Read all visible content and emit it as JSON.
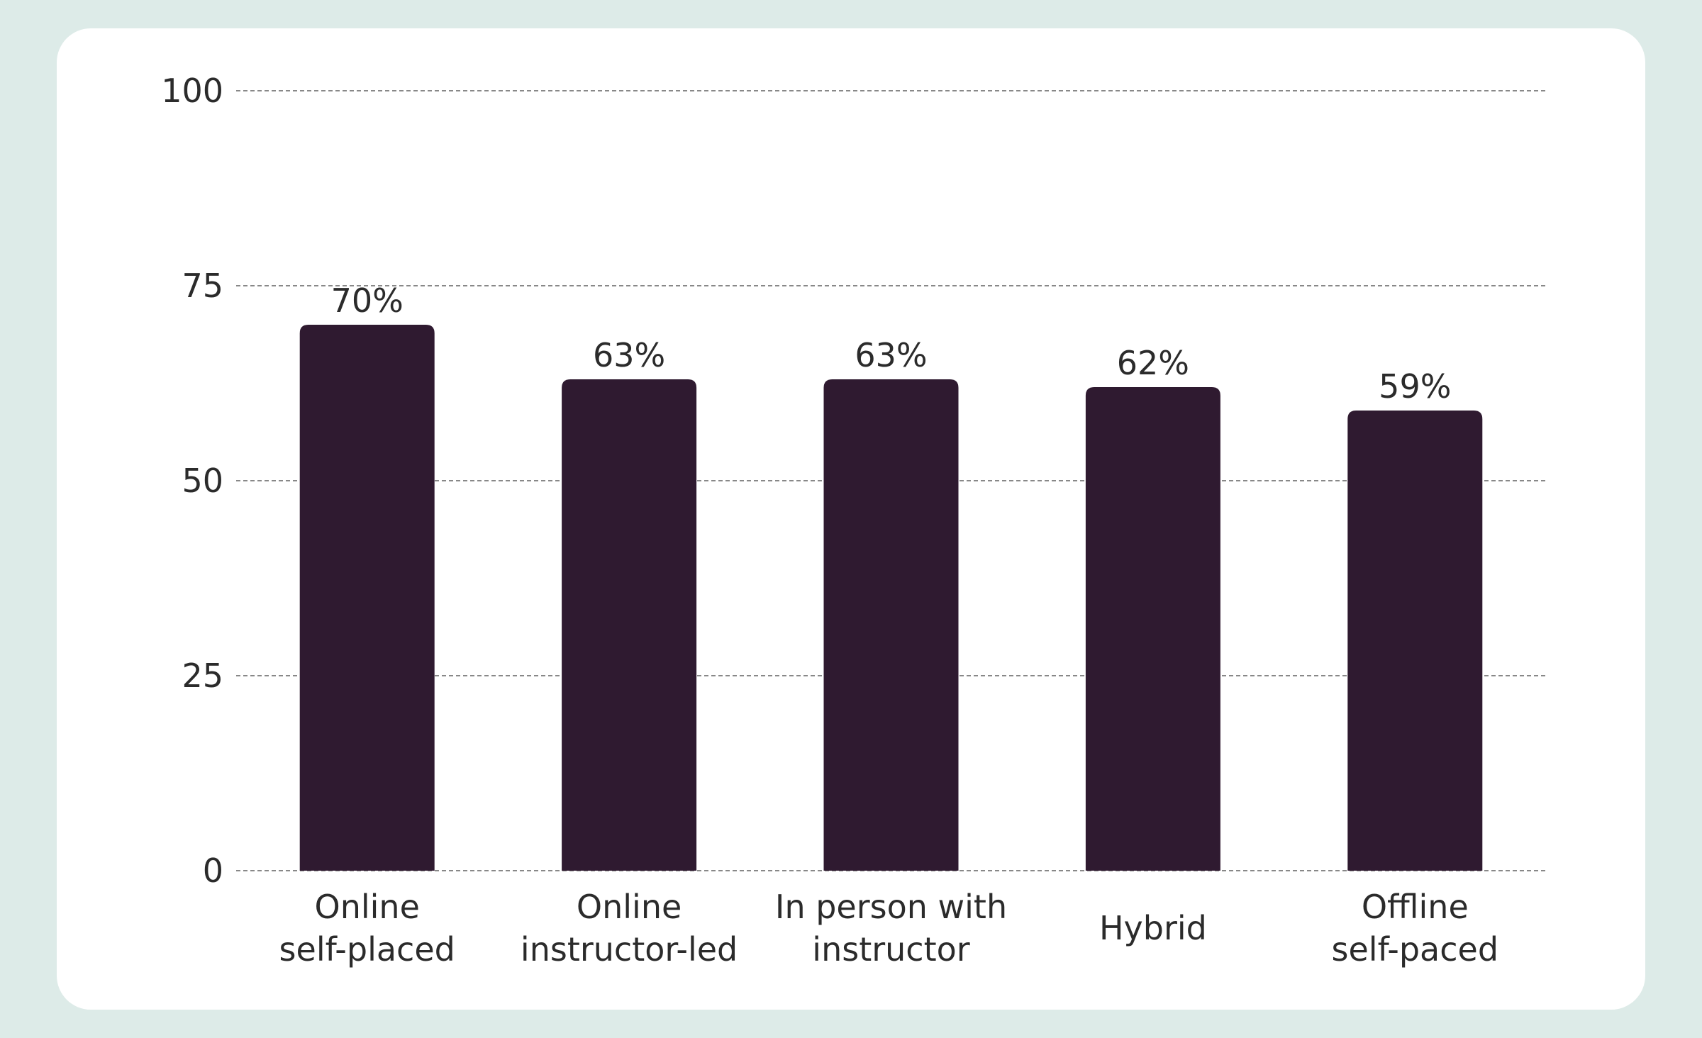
{
  "colors": {
    "background": "#ddebe8",
    "card": "#ffffff",
    "bar": "#2f1a30",
    "text": "#2b2b2b",
    "grid": "#888888"
  },
  "chart_data": {
    "type": "bar",
    "categories": [
      [
        "Online",
        "self-placed"
      ],
      [
        "Online",
        "instructor-led"
      ],
      [
        "In person with",
        "instructor"
      ],
      [
        "Hybrid"
      ],
      [
        "Offline",
        "self-paced"
      ]
    ],
    "values": [
      70,
      63,
      63,
      62,
      59
    ],
    "value_labels": [
      "70%",
      "63%",
      "63%",
      "62%",
      "59%"
    ],
    "yticks": [
      0,
      25,
      50,
      75,
      100
    ],
    "ylim": [
      0,
      100
    ],
    "grid": "horizontal-dashed",
    "title": "",
    "xlabel": "",
    "ylabel": ""
  }
}
